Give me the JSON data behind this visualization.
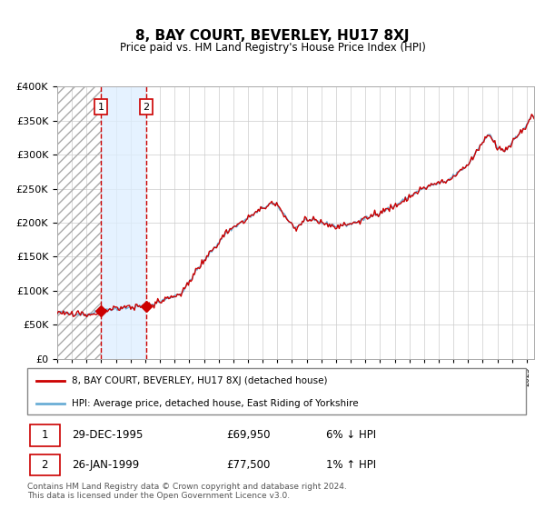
{
  "title": "8, BAY COURT, BEVERLEY, HU17 8XJ",
  "subtitle": "Price paid vs. HM Land Registry's House Price Index (HPI)",
  "legend_line1": "8, BAY COURT, BEVERLEY, HU17 8XJ (detached house)",
  "legend_line2": "HPI: Average price, detached house, East Riding of Yorkshire",
  "transaction1_date": "29-DEC-1995",
  "transaction1_price": "£69,950",
  "transaction1_hpi": "6% ↓ HPI",
  "transaction2_date": "26-JAN-1999",
  "transaction2_price": "£77,500",
  "transaction2_hpi": "1% ↑ HPI",
  "footer": "Contains HM Land Registry data © Crown copyright and database right 2024.\nThis data is licensed under the Open Government Licence v3.0.",
  "hpi_color": "#6baed6",
  "price_color": "#cc0000",
  "marker_color": "#cc0000",
  "ylim": [
    0,
    400000
  ],
  "yticks": [
    0,
    50000,
    100000,
    150000,
    200000,
    250000,
    300000,
    350000,
    400000
  ],
  "transaction1_x": 1995.99,
  "transaction1_y": 69950,
  "transaction2_x": 1999.07,
  "transaction2_y": 77500,
  "vline1_x": 1995.99,
  "vline2_x": 1999.07,
  "shade_xmin": 1995.99,
  "shade_xmax": 1999.07,
  "hatch_xmax": 1995.99,
  "xmin": 1993.0,
  "xmax": 2025.5
}
